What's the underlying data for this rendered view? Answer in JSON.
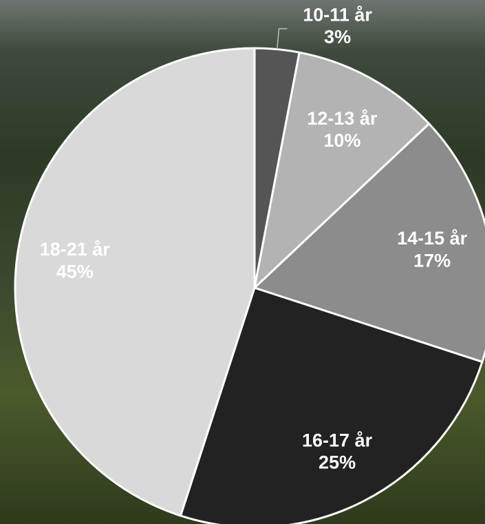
{
  "chart_data": {
    "type": "pie",
    "categories": [
      "10-11 år",
      "12-13 år",
      "14-15 år",
      "16-17 år",
      "18-21 år"
    ],
    "values": [
      3,
      10,
      17,
      25,
      45
    ],
    "value_labels": [
      "3%",
      "10%",
      "17%",
      "25%",
      "45%"
    ],
    "colors": [
      "#555555",
      "#b3b3b3",
      "#8c8c8c",
      "#222222",
      "#d9d9d9"
    ]
  }
}
